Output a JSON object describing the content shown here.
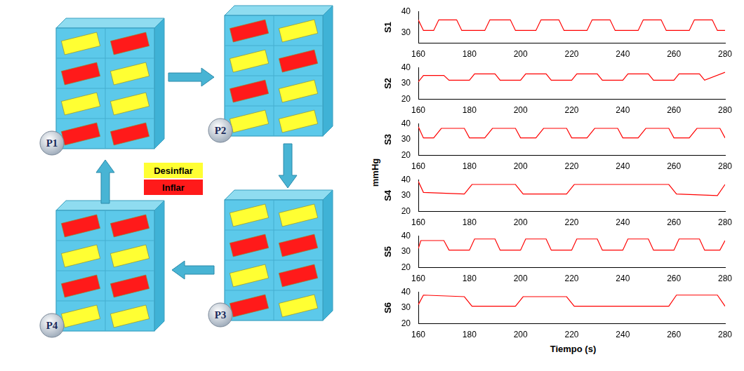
{
  "diagram": {
    "legend": [
      {
        "label": "Desinflar",
        "color": "#ffff33"
      },
      {
        "label": "Inflar",
        "color": "#ff1a1a"
      }
    ],
    "panels": [
      {
        "label": "P1",
        "cells": [
          [
            "Desinflar",
            "Inflar"
          ],
          [
            "Inflar",
            "Desinflar"
          ],
          [
            "Desinflar",
            "Desinflar"
          ],
          [
            "Inflar",
            "Inflar"
          ]
        ]
      },
      {
        "label": "P2",
        "cells": [
          [
            "Inflar",
            "Desinflar"
          ],
          [
            "Desinflar",
            "Inflar"
          ],
          [
            "Inflar",
            "Desinflar"
          ],
          [
            "Desinflar",
            "Desinflar"
          ]
        ]
      },
      {
        "label": "P3",
        "cells": [
          [
            "Desinflar",
            "Desinflar"
          ],
          [
            "Inflar",
            "Inflar"
          ],
          [
            "Desinflar",
            "Inflar"
          ],
          [
            "Inflar",
            "Desinflar"
          ]
        ]
      },
      {
        "label": "P4",
        "cells": [
          [
            "Inflar",
            "Inflar"
          ],
          [
            "Desinflar",
            "Desinflar"
          ],
          [
            "Inflar",
            "Inflar"
          ],
          [
            "Desinflar",
            "Desinflar"
          ]
        ]
      }
    ],
    "cycle": [
      "P1",
      "P2",
      "P3",
      "P4"
    ]
  },
  "shared_axes": {
    "xlabel": "Tiempo (s)",
    "ylabel": "mmHg"
  },
  "chart_data": [
    {
      "type": "line",
      "ylabel": "S1",
      "color": "#ff0000",
      "grid": false,
      "xlim": [
        160,
        280
      ],
      "xticks": [
        160,
        180,
        200,
        220,
        240,
        260,
        280
      ],
      "ylim": [
        25,
        40
      ],
      "yticks": [
        30,
        40
      ],
      "x": [
        160,
        162,
        166,
        168,
        175,
        177,
        186,
        188,
        196,
        198,
        206,
        208,
        215,
        217,
        226,
        228,
        235,
        237,
        246,
        248,
        255,
        257,
        266,
        268,
        275,
        277,
        280
      ],
      "values": [
        36,
        31,
        31,
        36,
        36,
        31,
        31,
        36,
        36,
        31,
        31,
        36,
        36,
        31,
        31,
        36,
        36,
        31,
        31,
        36,
        36,
        31,
        31,
        36,
        36,
        31,
        31
      ]
    },
    {
      "type": "line",
      "ylabel": "S2",
      "color": "#ff0000",
      "grid": false,
      "xlim": [
        160,
        280
      ],
      "xticks": [
        160,
        180,
        200,
        220,
        240,
        260,
        280
      ],
      "ylim": [
        20,
        40
      ],
      "yticks": [
        20,
        30,
        40
      ],
      "x": [
        160,
        162,
        170,
        172,
        180,
        182,
        190,
        192,
        200,
        202,
        210,
        212,
        220,
        222,
        230,
        232,
        240,
        242,
        250,
        252,
        260,
        262,
        270,
        272,
        280
      ],
      "values": [
        31,
        35,
        35,
        32,
        32,
        36,
        36,
        32,
        32,
        36,
        36,
        32,
        32,
        36,
        36,
        32,
        32,
        36,
        36,
        32,
        32,
        36,
        36,
        32,
        37
      ]
    },
    {
      "type": "line",
      "ylabel": "S3",
      "color": "#ff0000",
      "grid": false,
      "xlim": [
        160,
        280
      ],
      "xticks": [
        160,
        180,
        200,
        220,
        240,
        260,
        280
      ],
      "ylim": [
        20,
        40
      ],
      "yticks": [
        20,
        30,
        40
      ],
      "x": [
        160,
        162,
        166,
        169,
        178,
        180,
        186,
        189,
        198,
        200,
        206,
        209,
        218,
        220,
        226,
        229,
        238,
        240,
        246,
        249,
        258,
        260,
        266,
        269,
        278,
        280
      ],
      "values": [
        38,
        31,
        31,
        37,
        37,
        31,
        31,
        37,
        37,
        31,
        31,
        37,
        37,
        31,
        31,
        37,
        37,
        31,
        31,
        37,
        37,
        31,
        31,
        37,
        37,
        31
      ]
    },
    {
      "type": "line",
      "ylabel": "S4",
      "color": "#ff0000",
      "grid": false,
      "xlim": [
        160,
        280
      ],
      "xticks": [
        160,
        180,
        200,
        220,
        240,
        260,
        280
      ],
      "ylim": [
        20,
        40
      ],
      "yticks": [
        20,
        30,
        40
      ],
      "x": [
        160,
        162,
        178,
        181,
        198,
        201,
        218,
        221,
        258,
        261,
        277,
        280
      ],
      "values": [
        39,
        32,
        31,
        37,
        37,
        31,
        31,
        37,
        37,
        31,
        30,
        37
      ]
    },
    {
      "type": "line",
      "ylabel": "S5",
      "color": "#ff0000",
      "grid": false,
      "xlim": [
        160,
        280
      ],
      "xticks": [
        160,
        180,
        200,
        220,
        240,
        260,
        280
      ],
      "ylim": [
        20,
        40
      ],
      "yticks": [
        20,
        30,
        40
      ],
      "x": [
        160,
        161,
        170,
        172,
        180,
        182,
        190,
        192,
        200,
        202,
        210,
        212,
        220,
        222,
        230,
        232,
        240,
        242,
        250,
        252,
        260,
        262,
        270,
        272,
        278,
        280
      ],
      "values": [
        32,
        37,
        37,
        31,
        31,
        38,
        38,
        31,
        31,
        38,
        38,
        31,
        31,
        38,
        38,
        31,
        31,
        38,
        38,
        31,
        31,
        38,
        38,
        31,
        31,
        37
      ]
    },
    {
      "type": "line",
      "ylabel": "S6",
      "color": "#ff0000",
      "grid": false,
      "xlim": [
        160,
        280
      ],
      "xticks": [
        160,
        180,
        200,
        220,
        240,
        260,
        280
      ],
      "ylim": [
        20,
        40
      ],
      "yticks": [
        20,
        30,
        40
      ],
      "x": [
        160,
        162,
        178,
        181,
        198,
        201,
        218,
        221,
        258,
        261,
        277,
        280
      ],
      "values": [
        32,
        38,
        37,
        31,
        31,
        37,
        37,
        31,
        31,
        38,
        38,
        31
      ]
    }
  ]
}
